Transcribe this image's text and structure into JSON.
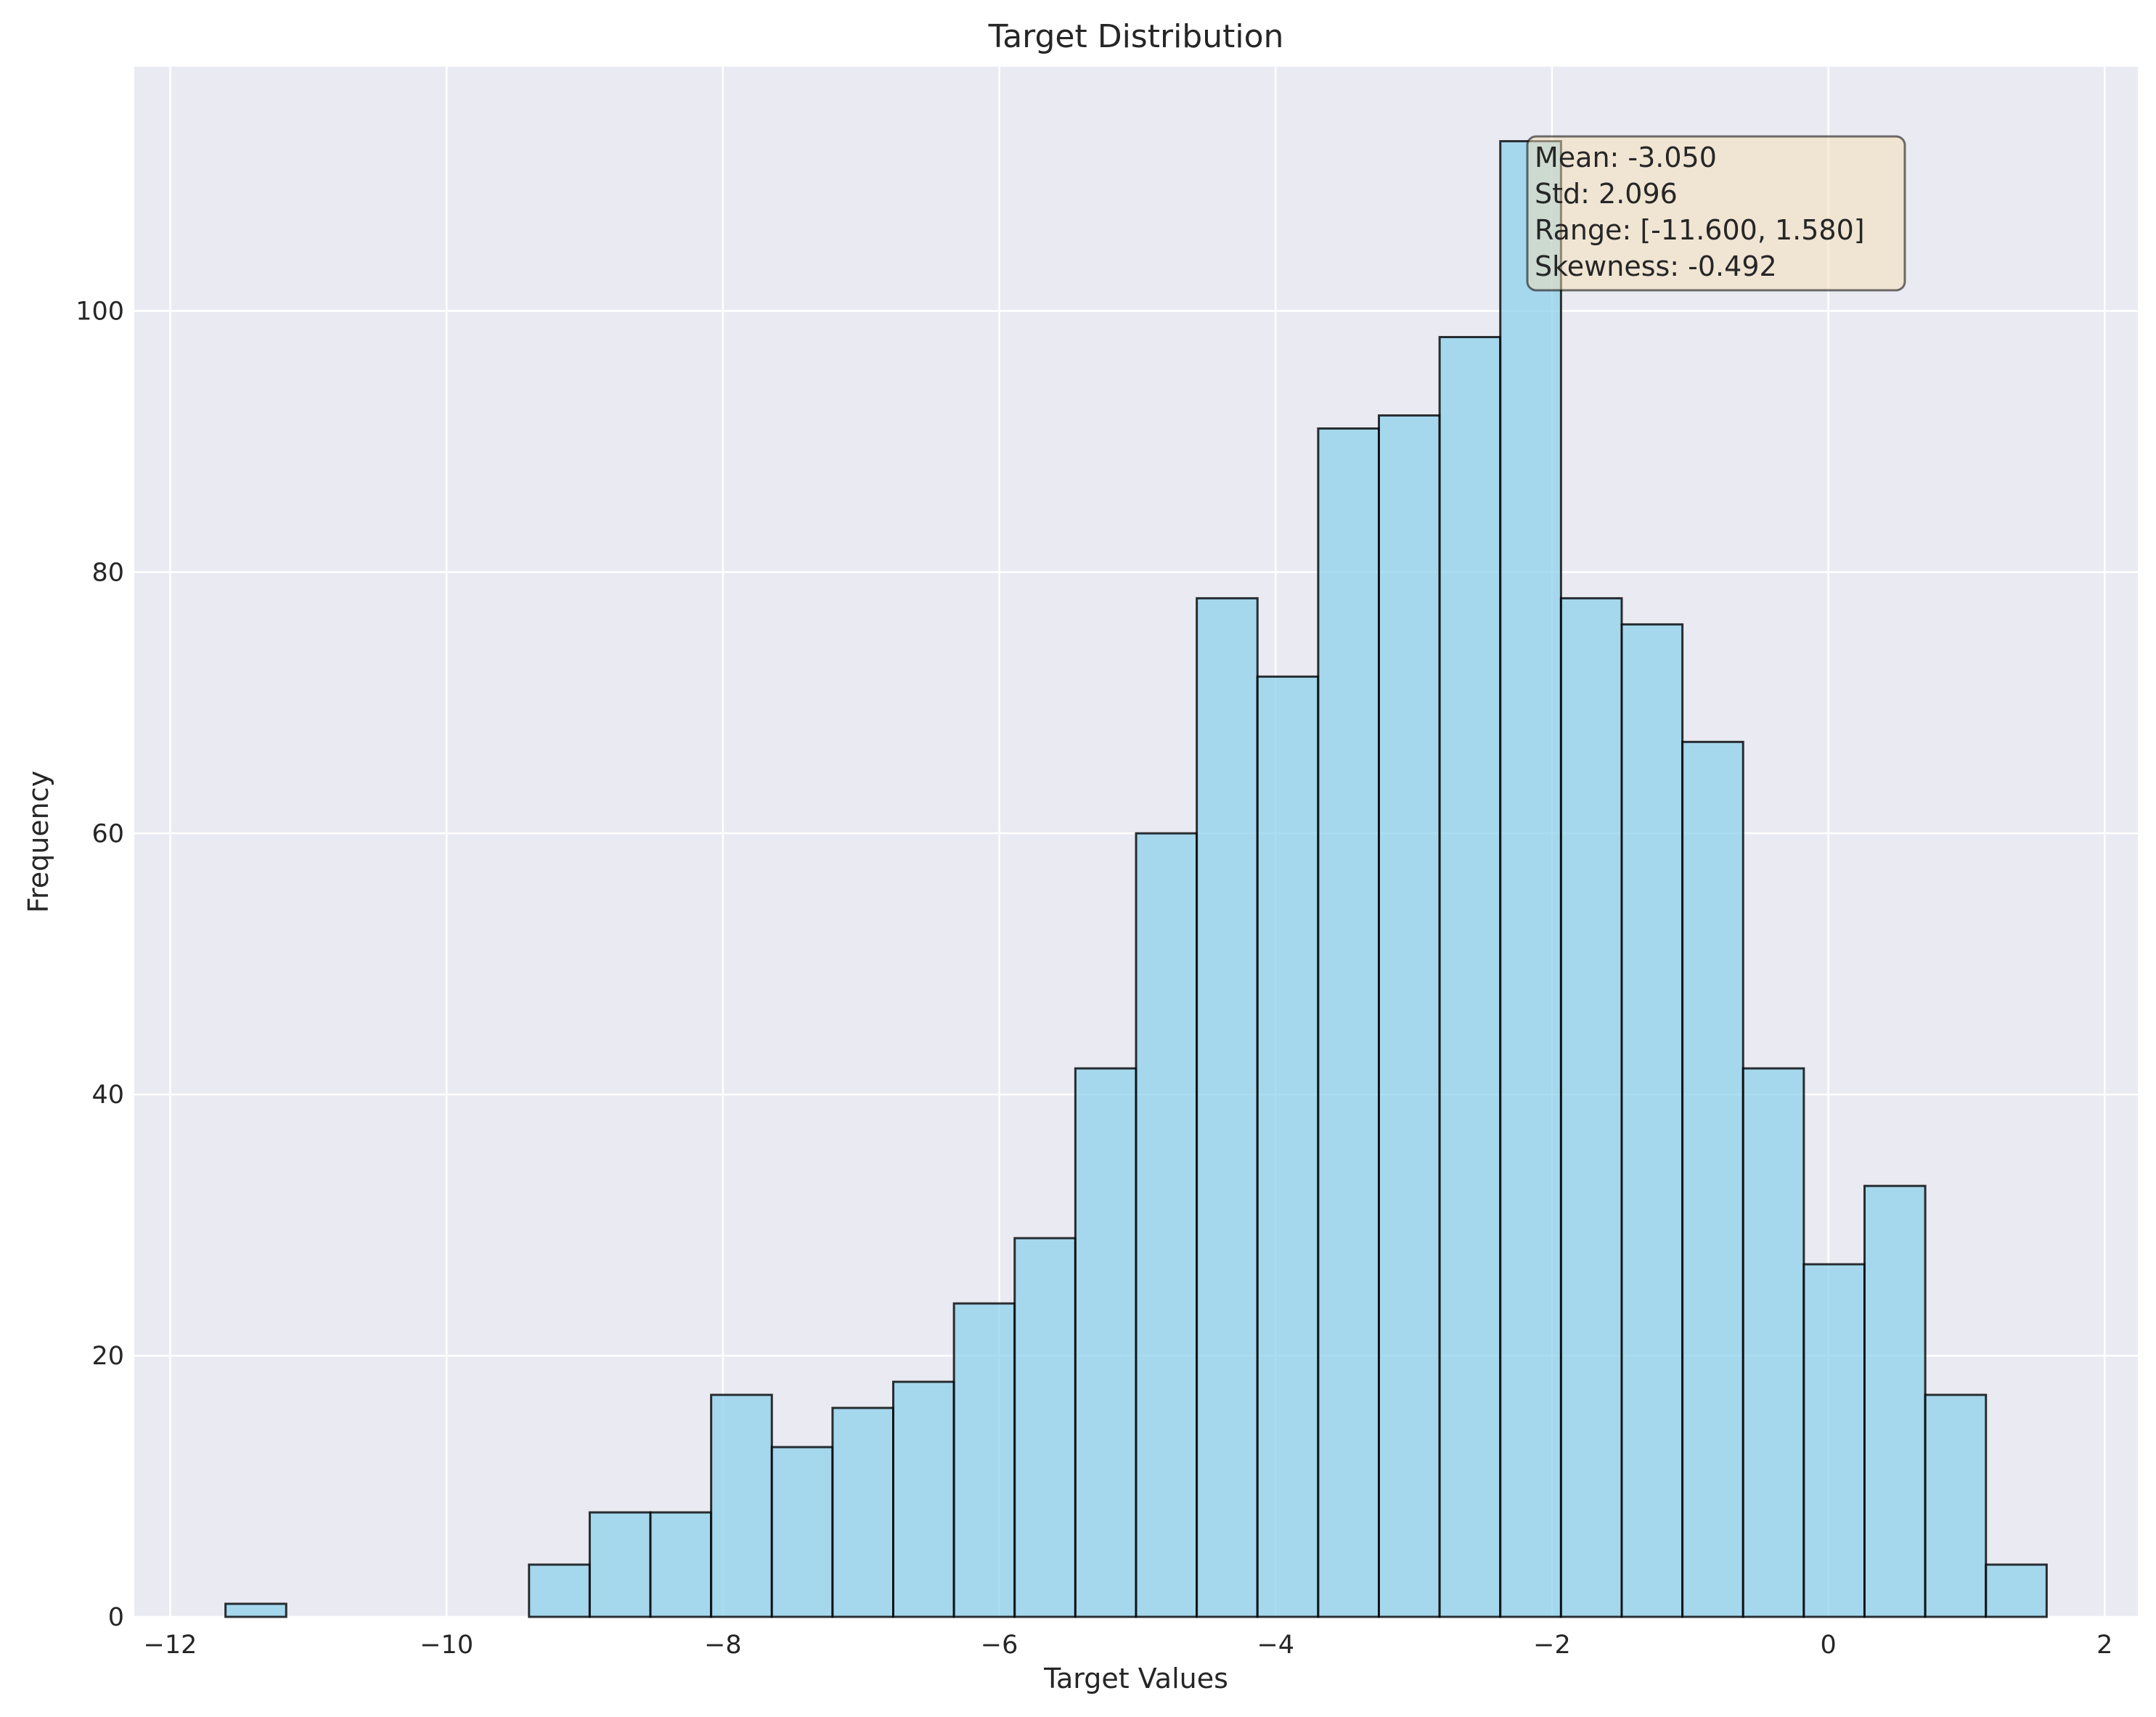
{
  "chart_data": {
    "type": "bar",
    "title": "Target Distribution",
    "xlabel": "Target Values",
    "ylabel": "Frequency",
    "xlim": [
      -12.26,
      2.24
    ],
    "ylim": [
      0,
      118.7
    ],
    "x_ticks": [
      -12,
      -10,
      -8,
      -6,
      -4,
      -2,
      0,
      2
    ],
    "x_tick_labels": [
      "−12",
      "−10",
      "−8",
      "−6",
      "−4",
      "−2",
      "0",
      "2"
    ],
    "y_ticks": [
      0,
      20,
      40,
      60,
      80,
      100
    ],
    "y_tick_labels": [
      "0",
      "20",
      "40",
      "60",
      "80",
      "100"
    ],
    "grid": true,
    "bin_start": -11.6,
    "bin_end": 1.58,
    "bin_count": 30,
    "values": [
      1,
      0,
      0,
      0,
      0,
      4,
      8,
      8,
      17,
      13,
      16,
      18,
      24,
      29,
      42,
      60,
      78,
      72,
      91,
      92,
      98,
      113,
      78,
      76,
      67,
      42,
      27,
      33,
      17,
      4
    ],
    "colors": {
      "bar_fill": "#87ceeb",
      "bar_edge": "#000000",
      "plot_background": "#eaeaf2",
      "grid": "#ffffff",
      "stats_box": "#f5deb3"
    },
    "stats_box": {
      "lines": [
        "Mean: -3.050",
        "Std: 2.096",
        "Range: [-11.600, 1.580]",
        "Skewness: -0.492"
      ],
      "placement": "top-right"
    }
  }
}
